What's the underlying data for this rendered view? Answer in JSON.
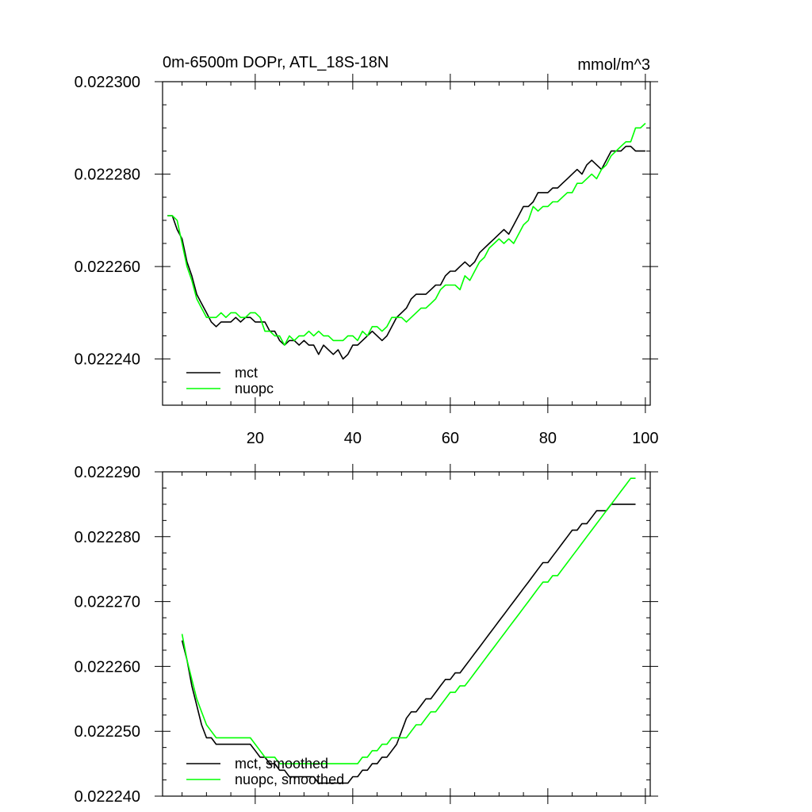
{
  "chart_data": [
    {
      "type": "line",
      "title": "0m-6500m DOPr, ATL_18S-18N",
      "units": "mmol/m^3",
      "xlabel": "",
      "ylabel": "",
      "xlim": [
        1,
        101
      ],
      "ylim": [
        0.02223,
        0.0223
      ],
      "xticks": [
        20,
        40,
        60,
        80,
        100
      ],
      "xtick_labels": [
        "20",
        "40",
        "60",
        "80",
        "100"
      ],
      "yticks": [
        0.02224,
        0.02226,
        0.02228,
        0.0223
      ],
      "ytick_labels": [
        "0.022240",
        "0.022260",
        "0.022280",
        "0.022300"
      ],
      "legend": "bottom-left",
      "series": [
        {
          "name": "mct",
          "color": "#000000",
          "x": [
            2,
            3,
            4,
            5,
            6,
            7,
            8,
            9,
            10,
            11,
            12,
            13,
            14,
            15,
            16,
            17,
            18,
            19,
            20,
            21,
            22,
            23,
            24,
            25,
            26,
            27,
            28,
            29,
            30,
            31,
            32,
            33,
            34,
            35,
            36,
            37,
            38,
            39,
            40,
            41,
            42,
            43,
            44,
            45,
            46,
            47,
            48,
            49,
            50,
            51,
            52,
            53,
            54,
            55,
            56,
            57,
            58,
            59,
            60,
            61,
            62,
            63,
            64,
            65,
            66,
            67,
            68,
            69,
            70,
            71,
            72,
            73,
            74,
            75,
            76,
            77,
            78,
            79,
            80,
            81,
            82,
            83,
            84,
            85,
            86,
            87,
            88,
            89,
            90,
            91,
            92,
            93,
            94,
            95,
            96,
            97,
            98,
            99,
            100
          ],
          "values": [
            0.022271,
            0.022271,
            0.022268,
            0.022266,
            0.022261,
            0.022258,
            0.022254,
            0.022252,
            0.02225,
            0.022248,
            0.022247,
            0.022248,
            0.022248,
            0.022248,
            0.022249,
            0.022248,
            0.022249,
            0.022249,
            0.022248,
            0.022248,
            0.022248,
            0.022246,
            0.022246,
            0.022244,
            0.022243,
            0.022244,
            0.022244,
            0.022243,
            0.022244,
            0.022243,
            0.022243,
            0.022241,
            0.022243,
            0.022242,
            0.022241,
            0.022242,
            0.02224,
            0.022241,
            0.022243,
            0.022243,
            0.022244,
            0.022245,
            0.022246,
            0.022245,
            0.022244,
            0.022245,
            0.022247,
            0.022249,
            0.02225,
            0.022251,
            0.022253,
            0.022254,
            0.022254,
            0.022254,
            0.022255,
            0.022256,
            0.022256,
            0.022258,
            0.022259,
            0.022259,
            0.02226,
            0.022261,
            0.02226,
            0.022261,
            0.022263,
            0.022264,
            0.022265,
            0.022266,
            0.022267,
            0.022268,
            0.022267,
            0.022269,
            0.022271,
            0.022273,
            0.022273,
            0.022274,
            0.022276,
            0.022276,
            0.022276,
            0.022277,
            0.022277,
            0.022278,
            0.022279,
            0.02228,
            0.022281,
            0.02228,
            0.022282,
            0.022283,
            0.022282,
            0.022281,
            0.022283,
            0.022285,
            0.022285,
            0.022285,
            0.022286,
            0.022286,
            0.022285,
            0.022285,
            0.022285
          ]
        },
        {
          "name": "nuopc",
          "color": "#00ff00",
          "x": [
            2,
            3,
            4,
            5,
            6,
            7,
            8,
            9,
            10,
            11,
            12,
            13,
            14,
            15,
            16,
            17,
            18,
            19,
            20,
            21,
            22,
            23,
            24,
            25,
            26,
            27,
            28,
            29,
            30,
            31,
            32,
            33,
            34,
            35,
            36,
            37,
            38,
            39,
            40,
            41,
            42,
            43,
            44,
            45,
            46,
            47,
            48,
            49,
            50,
            51,
            52,
            53,
            54,
            55,
            56,
            57,
            58,
            59,
            60,
            61,
            62,
            63,
            64,
            65,
            66,
            67,
            68,
            69,
            70,
            71,
            72,
            73,
            74,
            75,
            76,
            77,
            78,
            79,
            80,
            81,
            82,
            83,
            84,
            85,
            86,
            87,
            88,
            89,
            90,
            91,
            92,
            93,
            94,
            95,
            96,
            97,
            98,
            99,
            100
          ],
          "values": [
            0.022271,
            0.022271,
            0.02227,
            0.022265,
            0.02226,
            0.022257,
            0.022253,
            0.022251,
            0.022249,
            0.022249,
            0.022249,
            0.02225,
            0.022249,
            0.02225,
            0.02225,
            0.022249,
            0.022249,
            0.02225,
            0.02225,
            0.022249,
            0.022246,
            0.022246,
            0.022245,
            0.022245,
            0.022243,
            0.022245,
            0.022244,
            0.022245,
            0.022245,
            0.022246,
            0.022245,
            0.022246,
            0.022245,
            0.022245,
            0.022244,
            0.022244,
            0.022244,
            0.022245,
            0.022245,
            0.022244,
            0.022246,
            0.022245,
            0.022247,
            0.022247,
            0.022246,
            0.022247,
            0.022249,
            0.022249,
            0.022249,
            0.022248,
            0.022249,
            0.02225,
            0.022251,
            0.022251,
            0.022252,
            0.022253,
            0.022255,
            0.022256,
            0.022256,
            0.022256,
            0.022255,
            0.022258,
            0.022257,
            0.022259,
            0.022261,
            0.022262,
            0.022264,
            0.022265,
            0.022266,
            0.022265,
            0.022266,
            0.022265,
            0.022267,
            0.022269,
            0.02227,
            0.022273,
            0.022272,
            0.022273,
            0.022273,
            0.022274,
            0.022274,
            0.022275,
            0.022276,
            0.022276,
            0.022278,
            0.022278,
            0.022279,
            0.02228,
            0.022279,
            0.022281,
            0.022282,
            0.022284,
            0.022285,
            0.022286,
            0.022287,
            0.022287,
            0.02229,
            0.02229,
            0.022291
          ]
        }
      ]
    },
    {
      "type": "line",
      "title": "",
      "xlabel": "",
      "ylabel": "",
      "xlim": [
        1,
        101
      ],
      "ylim": [
        0.02224,
        0.02229
      ],
      "xticks": [
        20,
        40,
        60,
        80,
        100
      ],
      "xtick_labels": [],
      "yticks": [
        0.02224,
        0.02225,
        0.02226,
        0.02227,
        0.02228,
        0.02229
      ],
      "ytick_labels": [
        "0.022240",
        "0.022250",
        "0.022260",
        "0.022270",
        "0.022280",
        "0.022290"
      ],
      "legend": "bottom-left",
      "series": [
        {
          "name": "mct, smoothed",
          "color": "#000000",
          "x": [
            5,
            6,
            7,
            8,
            9,
            10,
            11,
            12,
            13,
            14,
            15,
            16,
            17,
            18,
            19,
            20,
            21,
            22,
            23,
            24,
            25,
            26,
            27,
            28,
            29,
            30,
            31,
            32,
            33,
            34,
            35,
            36,
            37,
            38,
            39,
            40,
            41,
            42,
            43,
            44,
            45,
            46,
            47,
            48,
            49,
            50,
            51,
            52,
            53,
            54,
            55,
            56,
            57,
            58,
            59,
            60,
            61,
            62,
            63,
            64,
            65,
            66,
            67,
            68,
            69,
            70,
            71,
            72,
            73,
            74,
            75,
            76,
            77,
            78,
            79,
            80,
            81,
            82,
            83,
            84,
            85,
            86,
            87,
            88,
            89,
            90,
            91,
            92,
            93,
            94,
            95,
            96,
            97,
            98
          ],
          "values": [
            0.022264,
            0.022261,
            0.022257,
            0.022254,
            0.022251,
            0.022249,
            0.022249,
            0.022248,
            0.022248,
            0.022248,
            0.022248,
            0.022248,
            0.022248,
            0.022248,
            0.022248,
            0.022247,
            0.022246,
            0.022246,
            0.022245,
            0.022245,
            0.022244,
            0.022244,
            0.022243,
            0.022243,
            0.022243,
            0.022243,
            0.022243,
            0.022243,
            0.022242,
            0.022242,
            0.022242,
            0.022242,
            0.022242,
            0.022242,
            0.022242,
            0.022243,
            0.022243,
            0.022244,
            0.022244,
            0.022245,
            0.022245,
            0.022246,
            0.022246,
            0.022247,
            0.022248,
            0.02225,
            0.022252,
            0.022253,
            0.022253,
            0.022254,
            0.022255,
            0.022255,
            0.022256,
            0.022257,
            0.022258,
            0.022258,
            0.022259,
            0.022259,
            0.02226,
            0.022261,
            0.022262,
            0.022263,
            0.022264,
            0.022265,
            0.022266,
            0.022267,
            0.022268,
            0.022269,
            0.02227,
            0.022271,
            0.022272,
            0.022273,
            0.022274,
            0.022275,
            0.022276,
            0.022276,
            0.022277,
            0.022278,
            0.022279,
            0.02228,
            0.022281,
            0.022281,
            0.022282,
            0.022282,
            0.022283,
            0.022284,
            0.022284,
            0.022284,
            0.022285,
            0.022285,
            0.022285,
            0.022285,
            0.022285,
            0.022285
          ]
        },
        {
          "name": "nuopc, smoothed",
          "color": "#00ff00",
          "x": [
            5,
            6,
            7,
            8,
            9,
            10,
            11,
            12,
            13,
            14,
            15,
            16,
            17,
            18,
            19,
            20,
            21,
            22,
            23,
            24,
            25,
            26,
            27,
            28,
            29,
            30,
            31,
            32,
            33,
            34,
            35,
            36,
            37,
            38,
            39,
            40,
            41,
            42,
            43,
            44,
            45,
            46,
            47,
            48,
            49,
            50,
            51,
            52,
            53,
            54,
            55,
            56,
            57,
            58,
            59,
            60,
            61,
            62,
            63,
            64,
            65,
            66,
            67,
            68,
            69,
            70,
            71,
            72,
            73,
            74,
            75,
            76,
            77,
            78,
            79,
            80,
            81,
            82,
            83,
            84,
            85,
            86,
            87,
            88,
            89,
            90,
            91,
            92,
            93,
            94,
            95,
            96,
            97,
            98
          ],
          "values": [
            0.022265,
            0.022261,
            0.022258,
            0.022255,
            0.022253,
            0.022251,
            0.02225,
            0.022249,
            0.022249,
            0.022249,
            0.022249,
            0.022249,
            0.022249,
            0.022249,
            0.022249,
            0.022248,
            0.022247,
            0.022246,
            0.022246,
            0.022246,
            0.022245,
            0.022245,
            0.022245,
            0.022245,
            0.022245,
            0.022245,
            0.022245,
            0.022245,
            0.022245,
            0.022245,
            0.022245,
            0.022245,
            0.022245,
            0.022245,
            0.022245,
            0.022245,
            0.022245,
            0.022246,
            0.022246,
            0.022247,
            0.022247,
            0.022248,
            0.022248,
            0.022249,
            0.022249,
            0.022249,
            0.022249,
            0.02225,
            0.022251,
            0.022251,
            0.022252,
            0.022253,
            0.022253,
            0.022254,
            0.022255,
            0.022256,
            0.022256,
            0.022257,
            0.022257,
            0.022258,
            0.022259,
            0.02226,
            0.022261,
            0.022262,
            0.022263,
            0.022264,
            0.022265,
            0.022266,
            0.022267,
            0.022268,
            0.022269,
            0.02227,
            0.022271,
            0.022272,
            0.022273,
            0.022273,
            0.022274,
            0.022274,
            0.022275,
            0.022276,
            0.022277,
            0.022278,
            0.022279,
            0.02228,
            0.022281,
            0.022282,
            0.022283,
            0.022284,
            0.022285,
            0.022286,
            0.022287,
            0.022288,
            0.022289,
            0.022289
          ]
        }
      ]
    }
  ]
}
